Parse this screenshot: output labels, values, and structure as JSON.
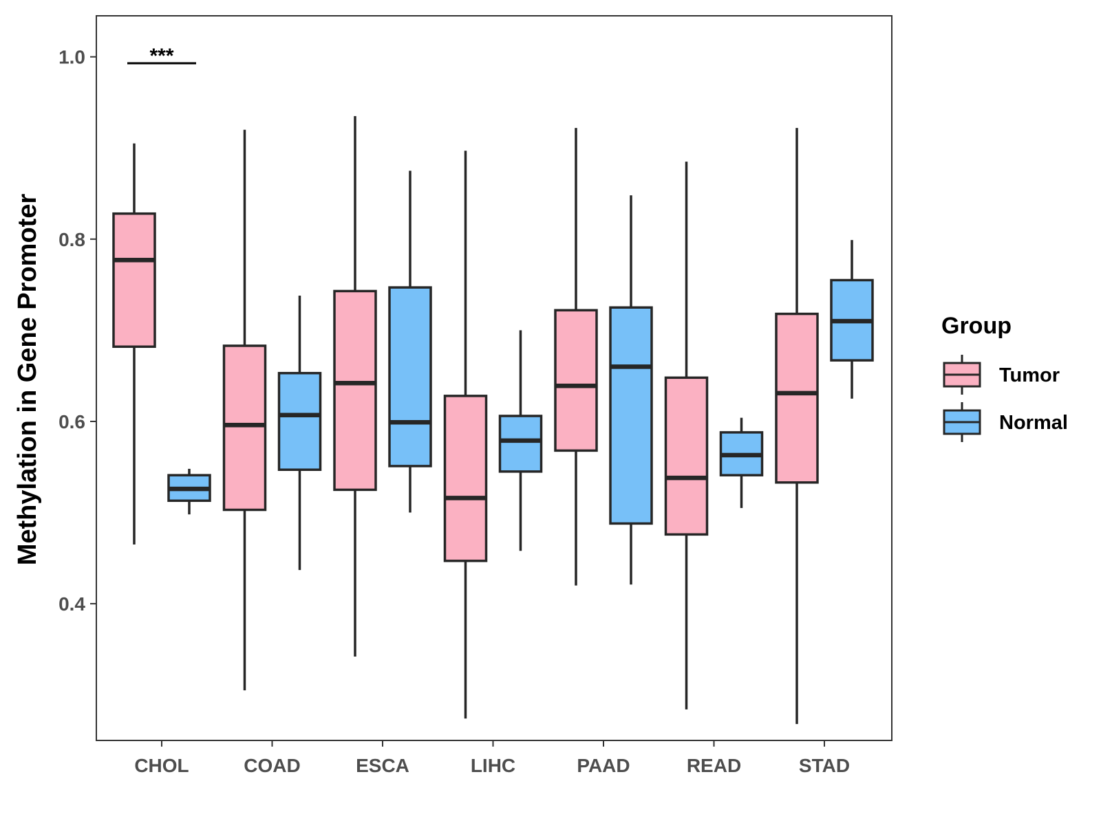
{
  "chart_data": {
    "type": "boxplot",
    "title": "",
    "xlabel": "",
    "ylabel": "Methylation in Gene Promoter",
    "ylim": [
      0.25,
      1.045
    ],
    "yticks": [
      0.4,
      0.6,
      0.8,
      1.0
    ],
    "ytick_labels": [
      "0.4",
      "0.6",
      "0.8",
      "1.0"
    ],
    "categories": [
      "CHOL",
      "COAD",
      "ESCA",
      "LIHC",
      "PAAD",
      "READ",
      "STAD"
    ],
    "legend": {
      "title": "Group",
      "placement": "right",
      "entries": [
        {
          "label": "Tumor",
          "color": "#FBB1C2"
        },
        {
          "label": "Normal",
          "color": "#77C0F8"
        }
      ]
    },
    "series": [
      {
        "name": "Tumor",
        "color": "#FBB1C2",
        "boxes": [
          {
            "category": "CHOL",
            "min": 0.465,
            "q1": 0.682,
            "median": 0.777,
            "q3": 0.828,
            "max": 0.905
          },
          {
            "category": "COAD",
            "min": 0.305,
            "q1": 0.503,
            "median": 0.596,
            "q3": 0.683,
            "max": 0.92
          },
          {
            "category": "ESCA",
            "min": 0.342,
            "q1": 0.525,
            "median": 0.642,
            "q3": 0.743,
            "max": 0.935
          },
          {
            "category": "LIHC",
            "min": 0.274,
            "q1": 0.447,
            "median": 0.516,
            "q3": 0.628,
            "max": 0.897
          },
          {
            "category": "PAAD",
            "min": 0.42,
            "q1": 0.568,
            "median": 0.639,
            "q3": 0.722,
            "max": 0.922
          },
          {
            "category": "READ",
            "min": 0.284,
            "q1": 0.476,
            "median": 0.538,
            "q3": 0.648,
            "max": 0.885
          },
          {
            "category": "STAD",
            "min": 0.268,
            "q1": 0.533,
            "median": 0.631,
            "q3": 0.718,
            "max": 0.922
          }
        ]
      },
      {
        "name": "Normal",
        "color": "#77C0F8",
        "boxes": [
          {
            "category": "CHOL",
            "min": 0.498,
            "q1": 0.513,
            "median": 0.526,
            "q3": 0.541,
            "max": 0.548
          },
          {
            "category": "COAD",
            "min": 0.437,
            "q1": 0.547,
            "median": 0.607,
            "q3": 0.653,
            "max": 0.738
          },
          {
            "category": "ESCA",
            "min": 0.5,
            "q1": 0.551,
            "median": 0.599,
            "q3": 0.747,
            "max": 0.875
          },
          {
            "category": "LIHC",
            "min": 0.458,
            "q1": 0.545,
            "median": 0.579,
            "q3": 0.606,
            "max": 0.7
          },
          {
            "category": "PAAD",
            "min": 0.421,
            "q1": 0.488,
            "median": 0.66,
            "q3": 0.725,
            "max": 0.848
          },
          {
            "category": "READ",
            "min": 0.505,
            "q1": 0.541,
            "median": 0.563,
            "q3": 0.588,
            "max": 0.604
          },
          {
            "category": "STAD",
            "min": 0.625,
            "q1": 0.667,
            "median": 0.71,
            "q3": 0.755,
            "max": 0.799
          }
        ]
      }
    ],
    "annotations": [
      {
        "category": "CHOL",
        "text": "***",
        "y": 0.993
      }
    ]
  }
}
